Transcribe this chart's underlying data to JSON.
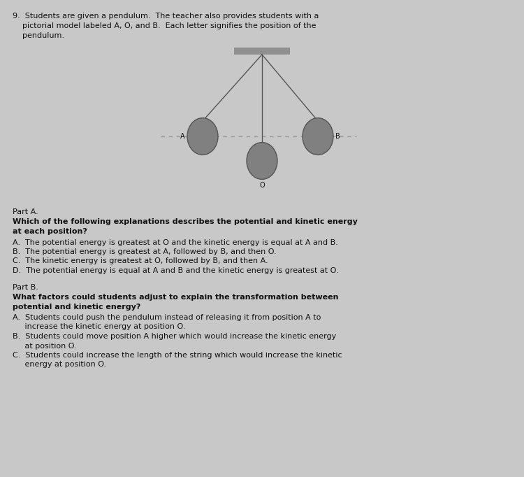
{
  "background_color": "#c8c8c8",
  "part_a_label": "Part A.",
  "part_a_q1": "Which of the following explanations describes the potential and kinetic energy",
  "part_a_q2": "at each position?",
  "part_a_A": "A.  The potential energy is greatest at O and the kinetic energy is equal at A and B.",
  "part_a_B": "B.  The potential energy is greatest at A, followed by B, and then O.",
  "part_a_C": "C.  The kinetic energy is greatest at O, followed by B, and then A.",
  "part_a_D": "D.  The potential energy is equal at A and B and the kinetic energy is greatest at O.",
  "part_b_label": "Part B.",
  "part_b_q1": "What factors could students adjust to explain the transformation between",
  "part_b_q2": "potential and kinetic energy?",
  "part_b_A1": "A.  Students could push the pendulum instead of releasing it from position A to",
  "part_b_A2": "     increase the kinetic energy at position O.",
  "part_b_B1": "B.  Students could move position A higher which would increase the kinetic energy",
  "part_b_B2": "     at position O.",
  "part_b_C1": "C.  Students could increase the length of the string which would increase the kinetic",
  "part_b_C2": "     energy at position O.",
  "intro1": "9.  Students are given a pendulum.  The teacher also provides students with a",
  "intro2": "    pictorial model labeled A, O, and B.  Each letter signifies the position of the",
  "intro3": "    pendulum.",
  "ball_color": "#808080",
  "ball_edge_color": "#555555",
  "string_color": "#555555",
  "pivot_bar_color": "#909090",
  "dashed_color": "#999999",
  "text_color": "#111111",
  "fs": 8.0,
  "fs_bold": 8.0
}
